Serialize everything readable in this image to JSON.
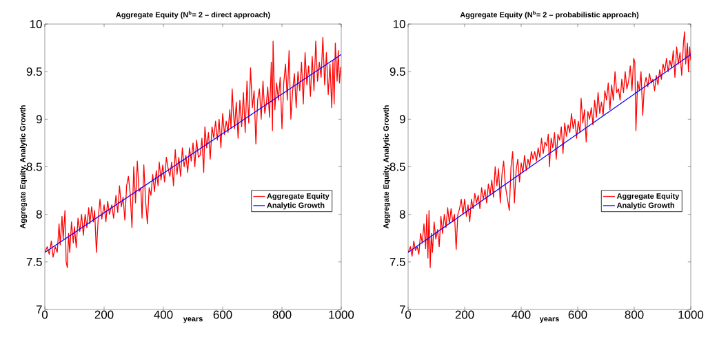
{
  "chart_data": [
    {
      "type": "line",
      "title": "Aggregate Equity (N$^{b}$= 2 – direct approach)",
      "xlabel": "years",
      "ylabel": "Aggregate Equity, Analytic Growth",
      "xlim": [
        0,
        1000
      ],
      "ylim": [
        7,
        10
      ],
      "xticks": [
        0,
        200,
        400,
        600,
        800,
        1000
      ],
      "yticks": [
        7,
        7.5,
        8,
        8.5,
        9,
        9.5,
        10
      ],
      "legend": "right",
      "grid": false,
      "series": [
        {
          "name": "Aggregate Equity",
          "color": "#ff0000",
          "x": [
            0,
            8,
            15,
            22,
            28,
            35,
            42,
            48,
            52,
            58,
            62,
            68,
            72,
            76,
            80,
            84,
            90,
            96,
            100,
            106,
            112,
            118,
            124,
            130,
            136,
            142,
            148,
            152,
            158,
            164,
            168,
            174,
            180,
            186,
            192,
            200,
            206,
            212,
            218,
            226,
            232,
            240,
            246,
            252,
            258,
            264,
            270,
            276,
            282,
            288,
            294,
            300,
            306,
            312,
            318,
            324,
            328,
            334,
            340,
            346,
            352,
            358,
            364,
            370,
            376,
            382,
            386,
            392,
            398,
            404,
            410,
            416,
            422,
            428,
            434,
            440,
            446,
            452,
            458,
            464,
            470,
            476,
            482,
            488,
            494,
            500,
            506,
            512,
            518,
            524,
            530,
            536,
            540,
            546,
            552,
            558,
            564,
            570,
            576,
            582,
            588,
            594,
            600,
            606,
            612,
            618,
            624,
            628,
            632,
            636,
            640,
            646,
            652,
            658,
            664,
            670,
            676,
            682,
            688,
            694,
            700,
            706,
            712,
            718,
            724,
            730,
            736,
            742,
            748,
            752,
            758,
            764,
            768,
            770,
            776,
            782,
            788,
            794,
            800,
            806,
            812,
            818,
            824,
            830,
            836,
            842,
            848,
            854,
            860,
            866,
            872,
            878,
            884,
            890,
            896,
            902,
            908,
            914,
            920,
            926,
            932,
            938,
            944,
            950,
            956,
            962,
            968,
            972,
            976,
            980,
            986,
            990,
            994,
            998
          ],
          "values": [
            7.6,
            7.66,
            7.58,
            7.72,
            7.55,
            7.66,
            7.6,
            7.9,
            7.68,
            7.98,
            7.74,
            8.04,
            7.5,
            7.44,
            7.8,
            7.6,
            7.92,
            7.7,
            7.87,
            7.65,
            7.96,
            7.82,
            8.0,
            7.78,
            8.0,
            7.86,
            8.07,
            7.9,
            8.08,
            7.92,
            8.04,
            7.6,
            7.95,
            8.16,
            7.95,
            8.1,
            7.92,
            8.14,
            8.0,
            8.1,
            7.96,
            8.2,
            8.02,
            8.3,
            8.08,
            8.18,
            7.94,
            8.3,
            8.4,
            8.22,
            7.86,
            8.5,
            8.12,
            8.56,
            8.24,
            8.28,
            7.96,
            8.52,
            8.14,
            7.9,
            8.28,
            8.2,
            8.42,
            8.24,
            8.46,
            8.3,
            8.55,
            8.36,
            8.52,
            8.34,
            8.6,
            8.48,
            8.4,
            8.55,
            8.3,
            8.68,
            8.42,
            8.6,
            8.4,
            8.7,
            8.5,
            8.62,
            8.44,
            8.7,
            8.56,
            8.75,
            8.5,
            8.78,
            8.6,
            8.62,
            8.8,
            8.44,
            8.92,
            8.7,
            8.86,
            8.58,
            8.92,
            8.8,
            8.98,
            8.78,
            9.0,
            8.7,
            9.06,
            8.84,
            8.98,
            8.86,
            9.1,
            8.9,
            9.32,
            9.08,
            8.9,
            9.18,
            8.8,
            9.2,
            8.92,
            9.28,
            8.86,
            9.4,
            8.96,
            9.54,
            9.12,
            9.3,
            8.74,
            9.2,
            9.32,
            9.0,
            9.4,
            9.06,
            9.18,
            9.34,
            9.02,
            9.6,
            8.88,
            9.82,
            9.1,
            9.38,
            9.2,
            9.44,
            8.9,
            9.38,
            9.58,
            9.2,
            9.72,
            9.0,
            9.3,
            9.48,
            9.12,
            9.5,
            9.3,
            9.6,
            9.16,
            9.7,
            9.36,
            9.56,
            9.24,
            9.66,
            9.3,
            9.82,
            9.4,
            9.6,
            9.44,
            9.86,
            9.36,
            9.7,
            9.26,
            9.58,
            9.12,
            9.62,
            9.16,
            9.8,
            9.4,
            9.72,
            9.38,
            9.55
          ]
        },
        {
          "name": "Analytic Growth",
          "color": "#0000ff",
          "x": [
            0,
            1000
          ],
          "values": [
            7.6,
            9.68
          ]
        }
      ]
    },
    {
      "type": "line",
      "title": "Aggregate Equity (N$^{b}$= 2 – probabilistic approach)",
      "xlabel": "years",
      "ylabel": "Aggregate Equity, Analytic Growth",
      "xlim": [
        0,
        1000
      ],
      "ylim": [
        7,
        10
      ],
      "xticks": [
        0,
        200,
        400,
        600,
        800,
        1000
      ],
      "yticks": [
        7,
        7.5,
        8,
        8.5,
        9,
        9.5,
        10
      ],
      "legend": "right",
      "grid": false,
      "series": [
        {
          "name": "Aggregate Equity",
          "color": "#ff0000",
          "x": [
            0,
            8,
            14,
            20,
            26,
            32,
            38,
            44,
            50,
            56,
            62,
            66,
            70,
            74,
            78,
            82,
            86,
            92,
            98,
            104,
            110,
            116,
            122,
            128,
            134,
            140,
            146,
            152,
            158,
            164,
            170,
            176,
            182,
            188,
            194,
            200,
            206,
            212,
            218,
            224,
            230,
            236,
            242,
            248,
            254,
            260,
            266,
            272,
            278,
            284,
            290,
            296,
            302,
            308,
            314,
            320,
            326,
            332,
            338,
            344,
            358,
            364,
            370,
            376,
            382,
            388,
            394,
            400,
            406,
            412,
            418,
            424,
            430,
            436,
            442,
            448,
            454,
            460,
            466,
            472,
            478,
            484,
            490,
            496,
            500,
            506,
            512,
            518,
            524,
            530,
            536,
            542,
            548,
            554,
            560,
            566,
            572,
            578,
            584,
            590,
            596,
            602,
            608,
            612,
            618,
            624,
            630,
            636,
            642,
            648,
            654,
            660,
            666,
            672,
            678,
            684,
            690,
            696,
            702,
            708,
            714,
            720,
            726,
            732,
            738,
            744,
            750,
            756,
            762,
            768,
            774,
            780,
            786,
            792,
            798,
            802,
            806,
            812,
            818,
            824,
            830,
            836,
            842,
            848,
            854,
            860,
            866,
            872,
            878,
            884,
            890,
            896,
            902,
            908,
            914,
            920,
            926,
            932,
            938,
            944,
            950,
            956,
            962,
            968,
            974,
            978,
            982,
            988,
            992,
            996,
            1000
          ],
          "values": [
            7.6,
            7.66,
            7.56,
            7.72,
            7.62,
            7.66,
            7.58,
            7.8,
            7.7,
            7.9,
            7.64,
            8.0,
            7.54,
            8.04,
            7.44,
            7.8,
            7.6,
            7.92,
            7.74,
            7.84,
            7.66,
            7.98,
            7.8,
            8.0,
            7.86,
            8.07,
            7.9,
            8.06,
            7.92,
            8.0,
            7.63,
            8.0,
            8.06,
            8.16,
            8.0,
            8.16,
            7.98,
            8.1,
            7.92,
            8.16,
            8.06,
            8.22,
            8.12,
            8.2,
            8.06,
            8.28,
            8.16,
            8.26,
            8.12,
            8.32,
            8.2,
            8.36,
            8.18,
            8.5,
            8.3,
            8.48,
            8.12,
            8.42,
            8.56,
            8.3,
            8.04,
            8.5,
            8.66,
            8.12,
            8.46,
            8.58,
            8.34,
            8.54,
            8.44,
            8.62,
            8.46,
            8.58,
            8.5,
            8.66,
            8.58,
            8.66,
            8.56,
            8.7,
            8.6,
            8.8,
            8.64,
            8.76,
            8.72,
            8.84,
            8.5,
            8.8,
            8.7,
            8.86,
            8.58,
            8.84,
            8.78,
            8.92,
            8.64,
            8.96,
            8.82,
            8.94,
            8.86,
            9.06,
            8.9,
            9.0,
            8.8,
            8.98,
            8.86,
            9.22,
            8.96,
            9.1,
            8.76,
            9.08,
            9.0,
            9.12,
            8.94,
            9.2,
            9.02,
            9.28,
            9.06,
            9.18,
            9.04,
            9.3,
            9.2,
            9.38,
            9.1,
            9.36,
            9.2,
            9.5,
            9.28,
            9.32,
            9.2,
            9.42,
            9.28,
            9.5,
            9.32,
            9.4,
            9.56,
            9.3,
            9.64,
            9.6,
            8.88,
            9.4,
            9.3,
            9.5,
            9.04,
            9.36,
            9.44,
            9.34,
            9.48,
            9.38,
            9.42,
            9.3,
            9.46,
            9.36,
            9.52,
            9.42,
            9.58,
            9.5,
            9.64,
            9.5,
            9.62,
            9.54,
            9.72,
            9.44,
            9.76,
            9.58,
            9.7,
            9.46,
            9.8,
            9.92,
            9.58,
            9.8,
            9.5,
            9.76,
            9.62
          ]
        },
        {
          "name": "Analytic Growth",
          "color": "#0000ff",
          "x": [
            0,
            1000
          ],
          "values": [
            7.6,
            9.68
          ]
        }
      ]
    }
  ]
}
